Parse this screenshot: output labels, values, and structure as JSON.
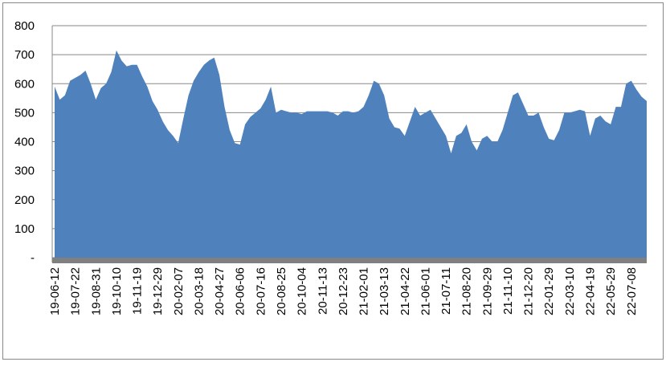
{
  "chart_data": {
    "type": "area",
    "color": "#4f81bd",
    "grid": true,
    "ylim": [
      0,
      800
    ],
    "yticks": [
      {
        "value": 0,
        "label": "-"
      },
      100,
      200,
      300,
      400,
      500,
      600,
      700,
      800
    ],
    "categories": [
      "19-06-12",
      null,
      null,
      null,
      "19-07-22",
      null,
      null,
      null,
      "19-08-31",
      null,
      null,
      null,
      "19-10-10",
      null,
      null,
      null,
      "19-11-19",
      null,
      null,
      null,
      "19-12-29",
      null,
      null,
      null,
      "20-02-07",
      null,
      null,
      null,
      "20-03-18",
      null,
      null,
      null,
      "20-04-27",
      null,
      null,
      null,
      "20-06-06",
      null,
      null,
      null,
      "20-07-16",
      null,
      null,
      null,
      "20-08-25",
      null,
      null,
      null,
      "20-10-04",
      null,
      null,
      null,
      "20-11-13",
      null,
      null,
      null,
      "20-12-23",
      null,
      null,
      null,
      "21-02-01",
      null,
      null,
      null,
      "21-03-13",
      null,
      null,
      null,
      "21-04-22",
      null,
      null,
      null,
      "21-06-01",
      null,
      null,
      null,
      "21-07-11",
      null,
      null,
      null,
      "21-08-20",
      null,
      null,
      null,
      "21-09-29",
      null,
      null,
      null,
      "21-11-10",
      null,
      null,
      null,
      "21-12-20",
      null,
      null,
      null,
      "22-01-29",
      null,
      null,
      null,
      "22-03-10",
      null,
      null,
      null,
      "22-04-19",
      null,
      null,
      null,
      "22-05-29",
      null,
      null,
      null,
      "22-07-08",
      null,
      null,
      null
    ],
    "values": [
      590,
      545,
      560,
      610,
      620,
      630,
      645,
      600,
      545,
      585,
      600,
      640,
      715,
      680,
      660,
      665,
      665,
      625,
      590,
      540,
      510,
      470,
      440,
      420,
      395,
      480,
      560,
      610,
      640,
      665,
      680,
      690,
      630,
      520,
      440,
      395,
      390,
      460,
      485,
      500,
      515,
      545,
      590,
      500,
      510,
      505,
      500,
      500,
      495,
      505,
      505,
      505,
      505,
      505,
      500,
      490,
      505,
      505,
      500,
      505,
      520,
      560,
      610,
      600,
      560,
      480,
      450,
      445,
      420,
      470,
      520,
      490,
      500,
      510,
      480,
      450,
      420,
      360,
      420,
      430,
      460,
      400,
      370,
      410,
      420,
      400,
      400,
      440,
      500,
      560,
      570,
      530,
      490,
      490,
      500,
      450,
      410,
      405,
      440,
      500,
      500,
      505,
      510,
      505,
      420,
      480,
      490,
      470,
      460,
      520,
      520,
      600,
      610,
      580,
      555,
      540
    ]
  }
}
